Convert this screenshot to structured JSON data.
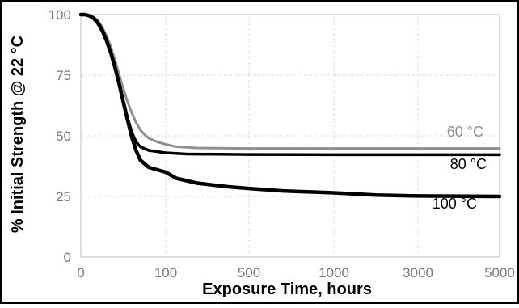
{
  "chart_data": {
    "type": "line",
    "title": "",
    "xlabel": "Exposure Time, hours",
    "ylabel": "% Initial Strength @ 22 °C",
    "x_tick_labels": [
      "0",
      "100",
      "500",
      "1000",
      "3000",
      "5000"
    ],
    "y_tick_labels": [
      "0",
      "25",
      "50",
      "75",
      "100"
    ],
    "ylim": [
      0,
      100
    ],
    "grid": true,
    "series": [
      {
        "name": "60 °C",
        "color": "#8f8f8f",
        "points": [
          {
            "x": 0,
            "y": 100
          },
          {
            "x": 5,
            "y": 100
          },
          {
            "x": 10,
            "y": 99.6
          },
          {
            "x": 15,
            "y": 99
          },
          {
            "x": 20,
            "y": 97.5
          },
          {
            "x": 25,
            "y": 95
          },
          {
            "x": 30,
            "y": 91.5
          },
          {
            "x": 35,
            "y": 87
          },
          {
            "x": 40,
            "y": 81.5
          },
          {
            "x": 45,
            "y": 75.5
          },
          {
            "x": 50,
            "y": 69.5
          },
          {
            "x": 55,
            "y": 64
          },
          {
            "x": 60,
            "y": 59.5
          },
          {
            "x": 65,
            "y": 55.5
          },
          {
            "x": 70,
            "y": 52.5
          },
          {
            "x": 75,
            "y": 50.5
          },
          {
            "x": 80,
            "y": 49
          },
          {
            "x": 90,
            "y": 47.5
          },
          {
            "x": 100,
            "y": 46.5
          },
          {
            "x": 150,
            "y": 45.5
          },
          {
            "x": 250,
            "y": 45
          },
          {
            "x": 500,
            "y": 44.8
          },
          {
            "x": 1000,
            "y": 44.8
          },
          {
            "x": 3000,
            "y": 44.8
          },
          {
            "x": 5000,
            "y": 44.8
          }
        ]
      },
      {
        "name": "80 °C",
        "color": "#000000",
        "points": [
          {
            "x": 0,
            "y": 100
          },
          {
            "x": 5,
            "y": 100
          },
          {
            "x": 10,
            "y": 99.5
          },
          {
            "x": 15,
            "y": 98.7
          },
          {
            "x": 20,
            "y": 97
          },
          {
            "x": 25,
            "y": 94
          },
          {
            "x": 30,
            "y": 90
          },
          {
            "x": 35,
            "y": 85
          },
          {
            "x": 40,
            "y": 79
          },
          {
            "x": 45,
            "y": 72
          },
          {
            "x": 50,
            "y": 64.5
          },
          {
            "x": 55,
            "y": 57.5
          },
          {
            "x": 60,
            "y": 51.5
          },
          {
            "x": 65,
            "y": 47.5
          },
          {
            "x": 70,
            "y": 45.5
          },
          {
            "x": 80,
            "y": 44
          },
          {
            "x": 100,
            "y": 43
          },
          {
            "x": 200,
            "y": 42.5
          },
          {
            "x": 500,
            "y": 42.3
          },
          {
            "x": 1000,
            "y": 42.2
          },
          {
            "x": 3000,
            "y": 42.2
          },
          {
            "x": 5000,
            "y": 42.2
          }
        ]
      },
      {
        "name": "100 °C",
        "color": "#000000",
        "points": [
          {
            "x": 0,
            "y": 100
          },
          {
            "x": 5,
            "y": 100
          },
          {
            "x": 10,
            "y": 99.5
          },
          {
            "x": 15,
            "y": 98.5
          },
          {
            "x": 20,
            "y": 96.5
          },
          {
            "x": 25,
            "y": 93.5
          },
          {
            "x": 30,
            "y": 89.5
          },
          {
            "x": 35,
            "y": 84.5
          },
          {
            "x": 40,
            "y": 78.5
          },
          {
            "x": 45,
            "y": 71.5
          },
          {
            "x": 50,
            "y": 64
          },
          {
            "x": 55,
            "y": 56.5
          },
          {
            "x": 60,
            "y": 49.5
          },
          {
            "x": 65,
            "y": 44
          },
          {
            "x": 70,
            "y": 40
          },
          {
            "x": 80,
            "y": 37
          },
          {
            "x": 100,
            "y": 35
          },
          {
            "x": 150,
            "y": 32.5
          },
          {
            "x": 250,
            "y": 30.5
          },
          {
            "x": 400,
            "y": 29
          },
          {
            "x": 500,
            "y": 28.3
          },
          {
            "x": 700,
            "y": 27.3
          },
          {
            "x": 1000,
            "y": 26.5
          },
          {
            "x": 2000,
            "y": 25.6
          },
          {
            "x": 3000,
            "y": 25.2
          },
          {
            "x": 5000,
            "y": 25
          }
        ]
      }
    ]
  }
}
